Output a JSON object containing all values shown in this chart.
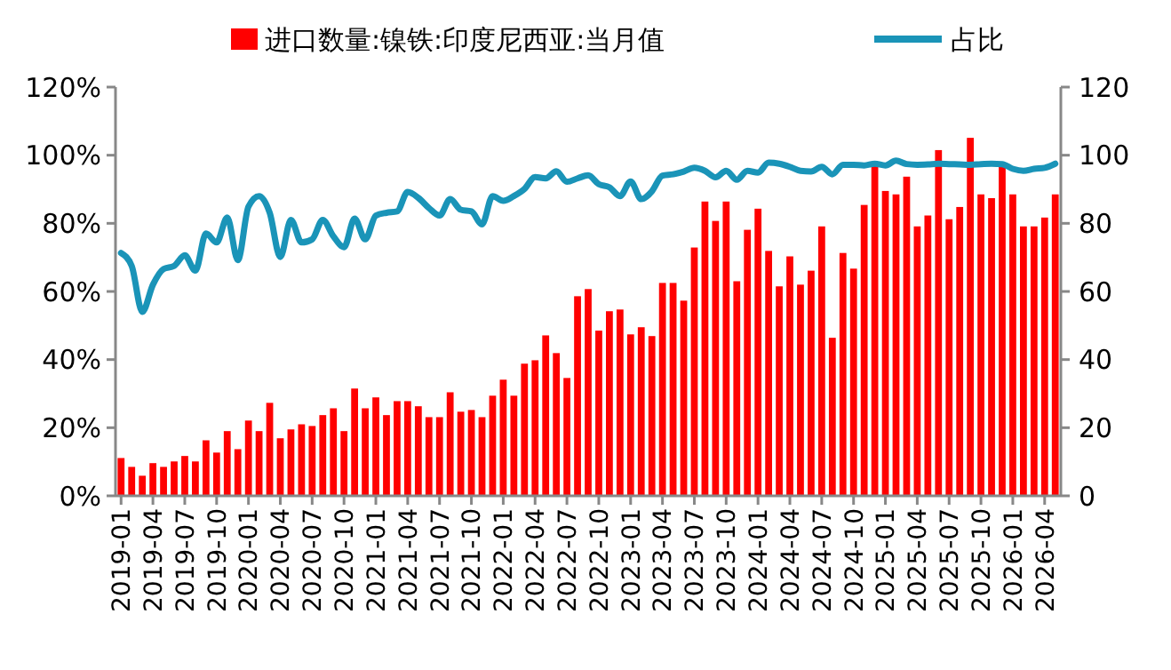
{
  "chart_data": {
    "type": "bar",
    "categories": [
      "2019-01",
      null,
      null,
      "2019-04",
      null,
      null,
      "2019-07",
      null,
      null,
      "2019-10",
      null,
      null,
      "2020-01",
      null,
      null,
      "2020-04",
      null,
      null,
      "2020-07",
      null,
      null,
      "2020-10",
      null,
      null,
      "2021-01",
      null,
      null,
      "2021-04",
      null,
      null,
      "2021-07",
      null,
      null,
      "2021-10",
      null,
      null,
      "2022-01",
      null,
      null,
      "2022-04",
      null,
      null,
      "2022-07",
      null,
      null,
      "2022-10",
      null,
      null,
      "2023-01",
      null,
      null,
      "2023-04",
      null,
      null,
      "2023-07",
      null,
      null,
      "2023-10",
      null,
      null,
      "2024-01",
      null,
      null,
      "2024-04",
      null,
      null,
      "2024-07",
      null,
      null,
      "2024-10",
      null,
      null,
      "2025-01",
      null,
      null,
      "2025-04",
      null,
      null,
      "2025-07",
      null,
      null,
      "2025-10",
      null,
      null,
      "2026-01",
      null,
      null,
      "2026-04",
      null
    ],
    "series": [
      {
        "name": "进口数量:镍铁:印度尼西亚:当月值",
        "color": "#ff0000",
        "values": [
          11.1,
          8.5,
          5.9,
          9.6,
          8.5,
          10.1,
          11.7,
          10.1,
          16.3,
          12.7,
          19.0,
          13.7,
          22.1,
          19.0,
          27.3,
          16.9,
          19.5,
          21.0,
          20.5,
          23.7,
          25.7,
          19.0,
          31.5,
          25.7,
          28.9,
          23.7,
          27.8,
          27.8,
          26.3,
          23.1,
          23.1,
          30.4,
          24.7,
          25.2,
          23.1,
          29.4,
          34.1,
          29.4,
          38.8,
          39.8,
          47.1,
          41.9,
          34.6,
          58.6,
          60.7,
          48.5,
          54.2,
          54.7,
          47.4,
          49.5,
          46.9,
          62.5,
          62.5,
          57.3,
          72.9,
          86.4,
          80.7,
          86.4,
          63.0,
          78.1,
          84.3,
          71.9,
          61.5,
          70.3,
          62.0,
          66.1,
          79.1,
          46.4,
          71.3,
          66.7,
          85.4,
          97.3,
          89.5,
          88.5,
          93.7,
          79.1,
          82.3,
          101.5,
          81.2,
          84.8,
          105.1,
          88.5,
          87.4,
          97.3,
          88.5,
          79.1,
          79.1,
          81.7,
          88.5
        ]
      },
      {
        "name": "占比",
        "type": "line",
        "color": "#1a94b8",
        "values": [
          71.3,
          67.5,
          54,
          62,
          66.6,
          67.5,
          70.6,
          66.1,
          77,
          74.4,
          81.7,
          69.2,
          84.9,
          88,
          83.1,
          70.1,
          81,
          74.4,
          75.3,
          81,
          76.2,
          73,
          81.4,
          75.3,
          82.3,
          83.1,
          83.5,
          89.2,
          87.5,
          84.5,
          82.3,
          87.1,
          84,
          83.5,
          79.7,
          88,
          86.6,
          88,
          90.1,
          93.6,
          93.2,
          95.3,
          92.2,
          93.2,
          94.1,
          91.5,
          90.6,
          88,
          92.3,
          87.1,
          89.4,
          94,
          94.4,
          95.2,
          96.3,
          95.4,
          93.5,
          95.4,
          92.8,
          95.4,
          94.9,
          97.8,
          97.5,
          96.6,
          95.4,
          95.2,
          96.6,
          94.4,
          97.2,
          97.2,
          97,
          97.5,
          97,
          98.4,
          97.4,
          97.2,
          97.3,
          97.5,
          97.4,
          97.3,
          97.2,
          97.4,
          97.5,
          97.4,
          96,
          95.4,
          96,
          96.3,
          97.5
        ]
      }
    ],
    "ylim": [
      0,
      120
    ],
    "yticks": [
      {
        "value": 0,
        "label": "0%"
      },
      {
        "value": 20,
        "label": "20%"
      },
      {
        "value": 40,
        "label": "40%"
      },
      {
        "value": 60,
        "label": "60%"
      },
      {
        "value": 80,
        "label": "80%"
      },
      {
        "value": 100,
        "label": "100%"
      },
      {
        "value": 120,
        "label": "120%"
      }
    ],
    "y2lim": [
      0,
      120
    ],
    "y2ticks": [
      0,
      20,
      40,
      60,
      80,
      100,
      120
    ],
    "legend": "top",
    "marker": "none",
    "line_style": "solid"
  }
}
